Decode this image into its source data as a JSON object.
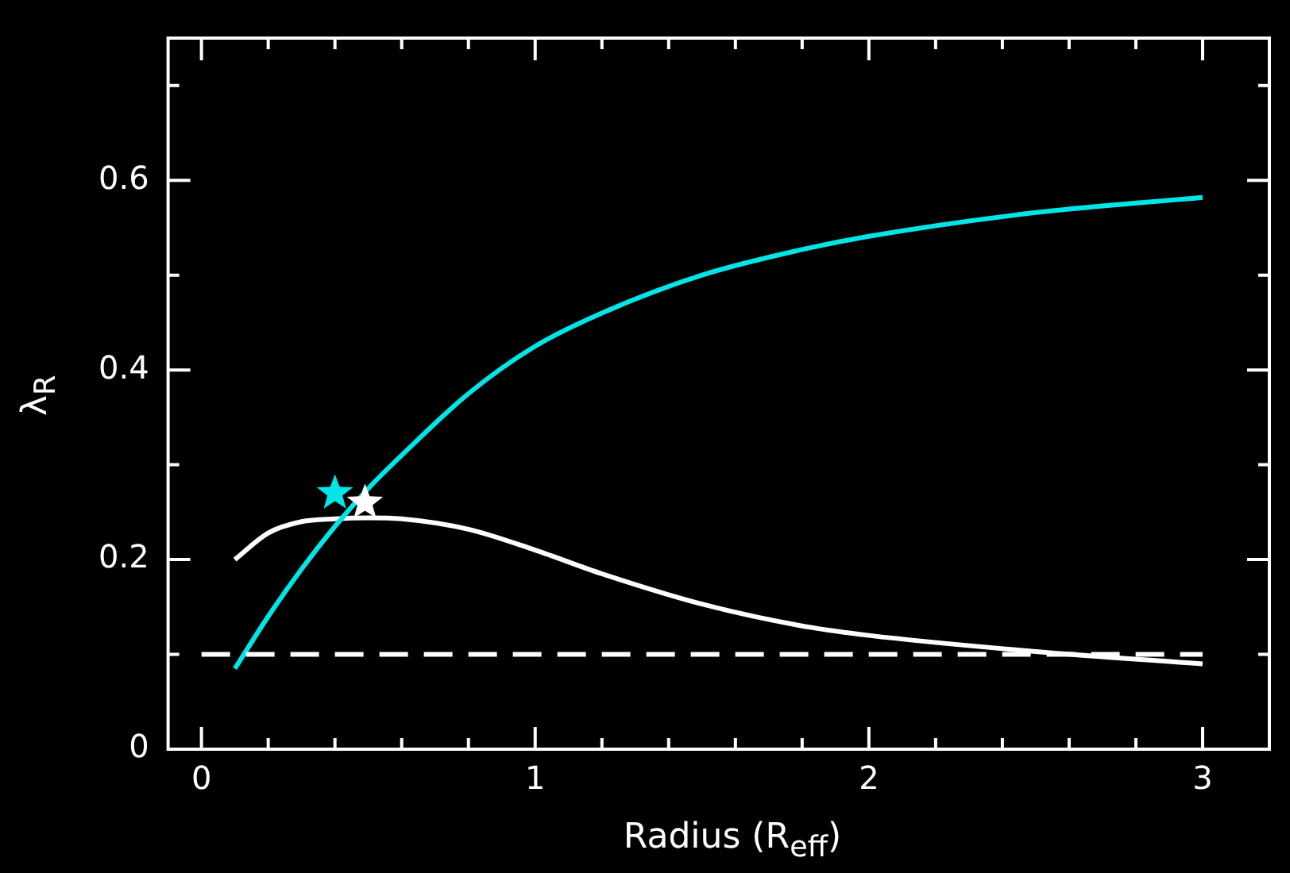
{
  "chart_data": {
    "type": "line",
    "xlabel": "Radius (R$_{eff}$)",
    "ylabel": "λ$_{R}$",
    "x": [
      0.1,
      0.2,
      0.3,
      0.4,
      0.5,
      0.6,
      0.8,
      1.0,
      1.2,
      1.5,
      1.8,
      2.0,
      2.5,
      3.0
    ],
    "series": [
      {
        "color": "#00e5e5",
        "values": [
          0.085,
          0.14,
          0.19,
          0.235,
          0.275,
          0.31,
          0.375,
          0.425,
          0.46,
          0.5,
          0.527,
          0.541,
          0.566,
          0.582
        ]
      },
      {
        "color": "#ffffff",
        "values": [
          0.2,
          0.228,
          0.24,
          0.243,
          0.244,
          0.243,
          0.232,
          0.21,
          0.185,
          0.153,
          0.13,
          0.12,
          0.103,
          0.09
        ]
      },
      {
        "type": "scatter",
        "marker": "star",
        "color": "#00e5e5",
        "x": [
          0.4
        ],
        "values": [
          0.27
        ]
      },
      {
        "type": "scatter",
        "marker": "star",
        "color": "#ffffff",
        "x": [
          0.49
        ],
        "values": [
          0.26
        ]
      }
    ],
    "xlim": [
      -0.1,
      3.2
    ],
    "ylim": [
      0,
      0.75
    ],
    "xticks": [
      0,
      1,
      2,
      3
    ],
    "yticks": [
      0,
      0.2,
      0.4,
      0.6
    ],
    "ref_lines": [
      {
        "axis": "y",
        "value": 0.1,
        "color": "#ffffff",
        "line_style": "dashed"
      }
    ],
    "grid": false,
    "legend": false,
    "marker": "none",
    "line_style": "solid"
  }
}
